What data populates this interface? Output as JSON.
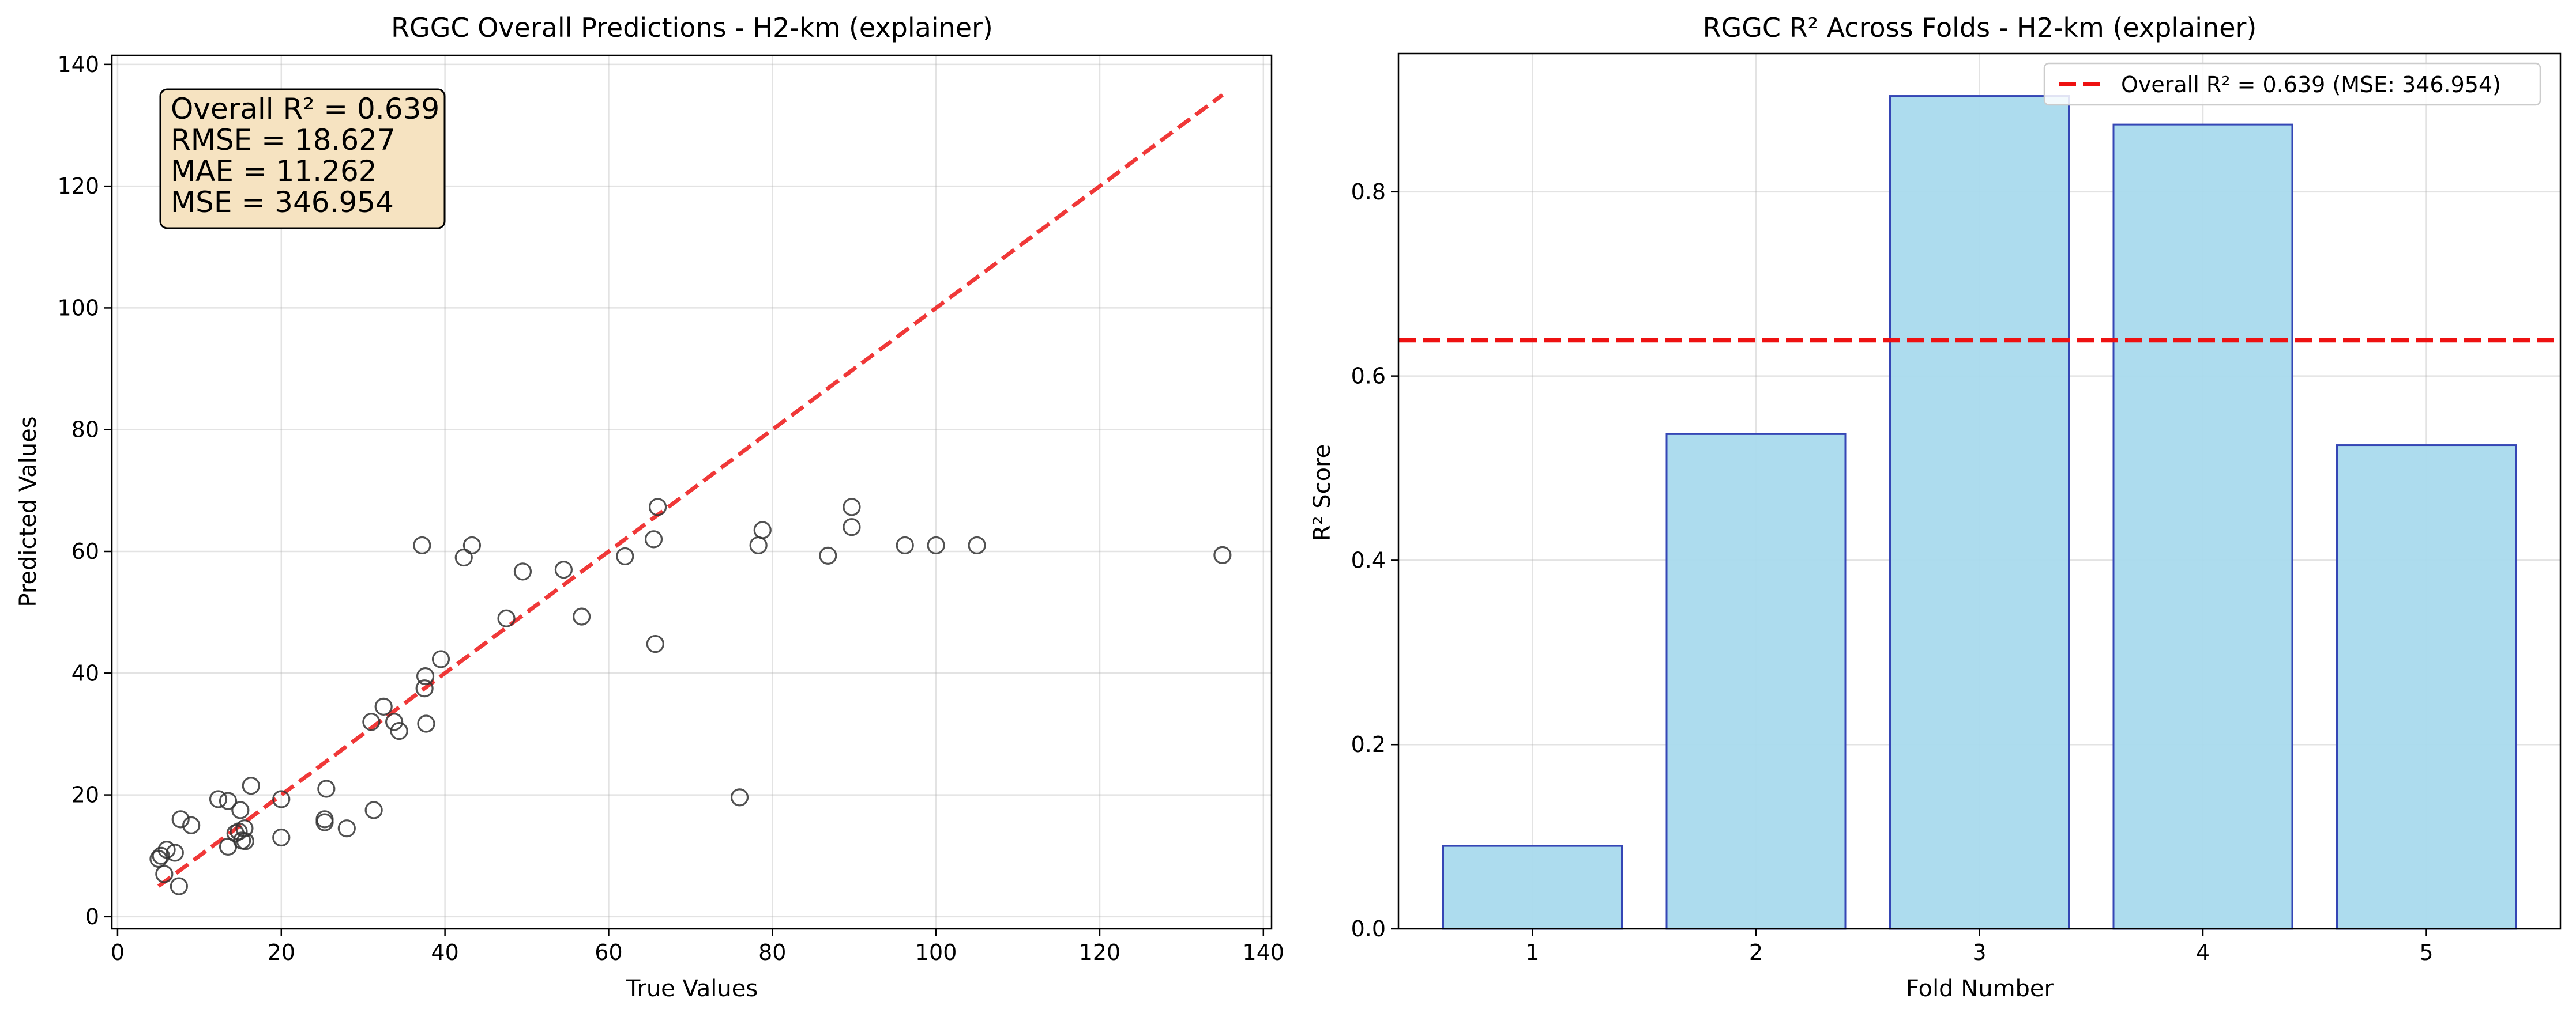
{
  "chart_data": [
    {
      "type": "scatter",
      "title": "RGGC Overall Predictions - H2-km (explainer)",
      "xlabel": "True Values",
      "ylabel": "Predicted Values",
      "xlim": [
        -0.7,
        141
      ],
      "ylim": [
        -2,
        141.5
      ],
      "xticks": [
        0,
        20,
        40,
        60,
        80,
        100,
        120,
        140
      ],
      "yticks": [
        0,
        20,
        40,
        60,
        80,
        100,
        120,
        140
      ],
      "grid": true,
      "reference_line": {
        "style": "dashed",
        "color": "#ee2222",
        "x": [
          5,
          135
        ],
        "y": [
          5,
          135
        ]
      },
      "stats_box": [
        "Overall R² = 0.639",
        "RMSE = 18.627",
        "MAE = 11.262",
        "MSE = 346.954"
      ],
      "points": [
        [
          5,
          9.5
        ],
        [
          5.3,
          10
        ],
        [
          6,
          11
        ],
        [
          5.7,
          7
        ],
        [
          7,
          10.5
        ],
        [
          7.5,
          5
        ],
        [
          7.7,
          16
        ],
        [
          9,
          15
        ],
        [
          12.3,
          19.3
        ],
        [
          13.5,
          19
        ],
        [
          13.5,
          11.5
        ],
        [
          14.4,
          13.7
        ],
        [
          14.8,
          14
        ],
        [
          15,
          17.5
        ],
        [
          15.5,
          14.5
        ],
        [
          15.2,
          12.5
        ],
        [
          15.6,
          12.4
        ],
        [
          16.3,
          21.5
        ],
        [
          20,
          19.3
        ],
        [
          20,
          13
        ],
        [
          25.3,
          16
        ],
        [
          25.3,
          15.5
        ],
        [
          25.5,
          21
        ],
        [
          28,
          14.5
        ],
        [
          31,
          32
        ],
        [
          31.3,
          17.5
        ],
        [
          32.5,
          34.5
        ],
        [
          33.8,
          32
        ],
        [
          34.4,
          30.5
        ],
        [
          37.2,
          61
        ],
        [
          37.5,
          37.5
        ],
        [
          37.6,
          39.5
        ],
        [
          37.7,
          31.7
        ],
        [
          39.5,
          42.3
        ],
        [
          42.3,
          59
        ],
        [
          43.3,
          61
        ],
        [
          47.5,
          49
        ],
        [
          49.5,
          56.7
        ],
        [
          54.5,
          57
        ],
        [
          56.7,
          49.3
        ],
        [
          62,
          59.2
        ],
        [
          65.5,
          62
        ],
        [
          65.7,
          44.8
        ],
        [
          66,
          67.3
        ],
        [
          76,
          19.6
        ],
        [
          78.3,
          61
        ],
        [
          78.8,
          63.5
        ],
        [
          86.8,
          59.3
        ],
        [
          89.7,
          67.3
        ],
        [
          89.7,
          64
        ],
        [
          96.2,
          61
        ],
        [
          100,
          61
        ],
        [
          105,
          61
        ],
        [
          135,
          59.4
        ]
      ]
    },
    {
      "type": "bar",
      "title": "RGGC R² Across Folds - H2-km (explainer)",
      "xlabel": "Fold Number",
      "ylabel": "R² Score",
      "categories": [
        "1",
        "2",
        "3",
        "4",
        "5"
      ],
      "values": [
        0.09,
        0.537,
        0.904,
        0.873,
        0.525
      ],
      "ylim": [
        0,
        0.95
      ],
      "yticks": [
        0.0,
        0.2,
        0.4,
        0.6,
        0.8
      ],
      "ytick_labels": [
        "0.0",
        "0.2",
        "0.4",
        "0.6",
        "0.8"
      ],
      "grid": true,
      "bar_color": "#a9daed",
      "bar_edge_color": "#3546b5",
      "reference_line": {
        "value": 0.639,
        "style": "dashed",
        "color": "#ee1111",
        "label": "Overall R² = 0.639 (MSE: 346.954)"
      },
      "legend_position": "top-right"
    }
  ]
}
